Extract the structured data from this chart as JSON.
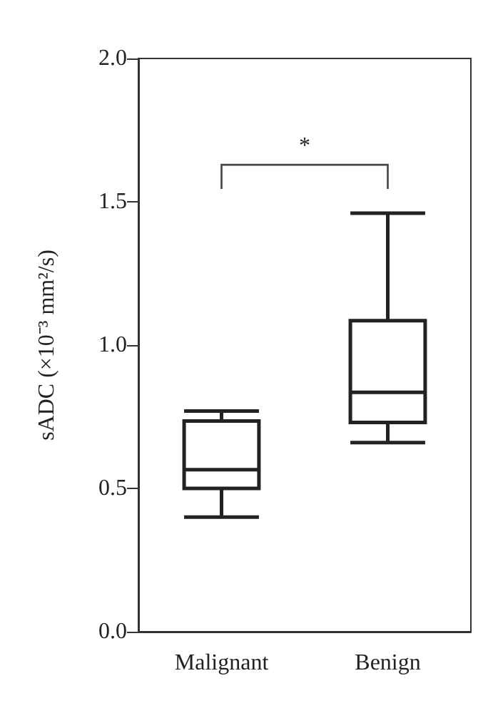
{
  "chart_data": {
    "type": "box",
    "ylabel": "sADC (×10⁻³ mm²/s)",
    "categories": [
      "Malignant",
      "Benign"
    ],
    "boxes": [
      {
        "low": 0.4,
        "q1": 0.5,
        "median": 0.565,
        "q3": 0.735,
        "high": 0.77
      },
      {
        "low": 0.66,
        "q1": 0.73,
        "median": 0.835,
        "q3": 1.085,
        "high": 1.46
      }
    ],
    "color": "#222222",
    "ylim": [
      0,
      2
    ],
    "yticks": [
      {
        "value": 0,
        "label": "0.0"
      },
      0.5,
      {
        "value": 1,
        "label": "1.0"
      },
      1.5,
      {
        "value": 2,
        "label": "2.0"
      }
    ],
    "grid": false,
    "annotations": [
      "*"
    ]
  }
}
